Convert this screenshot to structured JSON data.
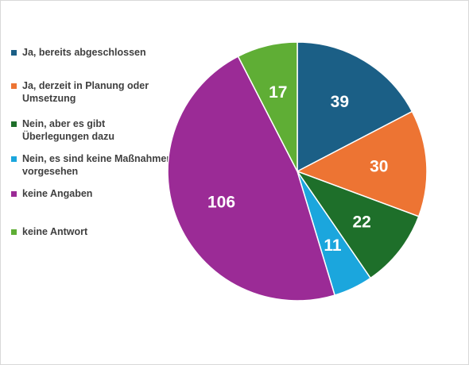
{
  "chart_data": {
    "type": "pie",
    "categories": [
      "Ja, bereits abgeschlossen",
      "Ja, derzeit in Planung oder Umsetzung",
      "Nein, aber es gibt Überlegungen dazu",
      "Nein, es sind keine Maßnahmen vorgesehen",
      "keine Angaben",
      "keine Antwort"
    ],
    "values": [
      39,
      30,
      22,
      11,
      106,
      17
    ],
    "value_labels": [
      "39",
      "30",
      "22",
      "11",
      "106",
      "17"
    ],
    "colors": [
      "#1b5f86",
      "#ed7433",
      "#1e6f2a",
      "#1ba6dd",
      "#9b2b96",
      "#5fae35"
    ],
    "start_angle": "12 o'clock",
    "direction": "clockwise",
    "legend_position": "left",
    "title": ""
  }
}
